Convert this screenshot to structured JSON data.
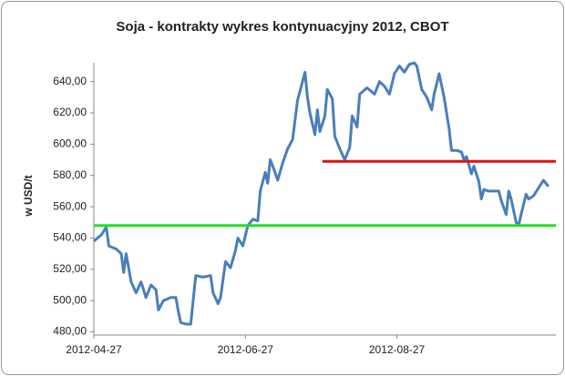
{
  "chart_data": {
    "type": "line",
    "title": "Soja - kontrakty wykres kontynuacyjny 2012, CBOT",
    "y_label": "w USD/t",
    "x": [
      "2012-04-27",
      "2012-04-30",
      "2012-05-02",
      "2012-05-03",
      "2012-05-06",
      "2012-05-08",
      "2012-05-09",
      "2012-05-10",
      "2012-05-12",
      "2012-05-14",
      "2012-05-16",
      "2012-05-18",
      "2012-05-20",
      "2012-05-22",
      "2012-05-23",
      "2012-05-25",
      "2012-05-28",
      "2012-05-30",
      "2012-05-31",
      "2012-06-01",
      "2012-06-03",
      "2012-06-05",
      "2012-06-07",
      "2012-06-10",
      "2012-06-13",
      "2012-06-14",
      "2012-06-16",
      "2012-06-17",
      "2012-06-19",
      "2012-06-21",
      "2012-06-23",
      "2012-06-24",
      "2012-06-26",
      "2012-06-28",
      "2012-06-30",
      "2012-07-02",
      "2012-07-03",
      "2012-07-05",
      "2012-07-06",
      "2012-07-07",
      "2012-07-08",
      "2012-07-10",
      "2012-07-12",
      "2012-07-14",
      "2012-07-16",
      "2012-07-18",
      "2012-07-21",
      "2012-07-22",
      "2012-07-23",
      "2012-07-25",
      "2012-07-26",
      "2012-07-27",
      "2012-07-29",
      "2012-07-30",
      "2012-08-01",
      "2012-08-02",
      "2012-08-04",
      "2012-08-06",
      "2012-08-08",
      "2012-08-09",
      "2012-08-11",
      "2012-08-12",
      "2012-08-15",
      "2012-08-18",
      "2012-08-20",
      "2012-08-22",
      "2012-08-24",
      "2012-08-26",
      "2012-08-28",
      "2012-08-30",
      "2012-09-01",
      "2012-09-03",
      "2012-09-04",
      "2012-09-06",
      "2012-09-08",
      "2012-09-10",
      "2012-09-11",
      "2012-09-13",
      "2012-09-15",
      "2012-09-17",
      "2012-09-18",
      "2012-09-20",
      "2012-09-22",
      "2012-09-23",
      "2012-09-24",
      "2012-09-26",
      "2012-09-27",
      "2012-09-29",
      "2012-09-30",
      "2012-10-01",
      "2012-10-03",
      "2012-10-05",
      "2012-10-07",
      "2012-10-08",
      "2012-10-10",
      "2012-10-11",
      "2012-10-12",
      "2012-10-14",
      "2012-10-15",
      "2012-10-16",
      "2012-10-18",
      "2012-10-19",
      "2012-10-21",
      "2012-10-23",
      "2012-10-25",
      "2012-10-27"
    ],
    "series": [
      {
        "color": "#4a7ebb",
        "values": [
          538,
          542,
          547,
          535,
          533,
          530,
          518,
          530,
          512,
          505,
          512,
          502,
          510,
          507,
          494,
          500,
          502,
          502,
          493,
          486,
          485,
          485,
          516,
          515,
          516,
          505,
          498,
          502,
          525,
          521,
          532,
          540,
          535,
          548,
          552,
          551,
          570,
          582,
          575,
          590,
          586,
          577,
          588,
          597,
          603,
          628,
          646,
          630,
          620,
          606,
          622,
          608,
          618,
          635,
          629,
          605,
          597,
          590,
          598,
          618,
          611,
          632,
          636,
          632,
          640,
          637,
          632,
          645,
          650,
          646,
          651,
          652,
          650,
          635,
          630,
          622,
          632,
          645,
          630,
          610,
          596,
          596,
          595,
          590,
          592,
          581,
          586,
          576,
          565,
          571,
          570,
          570,
          570,
          564,
          555,
          570,
          565,
          550,
          548,
          555,
          568,
          565,
          567,
          572,
          577,
          573
        ]
      }
    ],
    "hlines": [
      {
        "value": 589,
        "color": "#e01010",
        "x_start": "2012-07-28"
      },
      {
        "value": 548,
        "color": "#22e022",
        "x_start": "2012-04-27"
      }
    ],
    "xlim": [
      "2012-04-27",
      "2012-10-30"
    ],
    "xticks": [
      "2012-04-27",
      "2012-06-27",
      "2012-08-27"
    ],
    "ylim": [
      478,
      652
    ],
    "yticks": [
      {
        "value": 480,
        "label": "480,00"
      },
      {
        "value": 500,
        "label": "500,00"
      },
      {
        "value": 520,
        "label": "520,00"
      },
      {
        "value": 540,
        "label": "540,00"
      },
      {
        "value": 560,
        "label": "560,00"
      },
      {
        "value": 580,
        "label": "580,00"
      },
      {
        "value": 600,
        "label": "600,00"
      },
      {
        "value": 620,
        "label": "620,00"
      },
      {
        "value": 640,
        "label": "640,00"
      }
    ],
    "grid": false
  }
}
